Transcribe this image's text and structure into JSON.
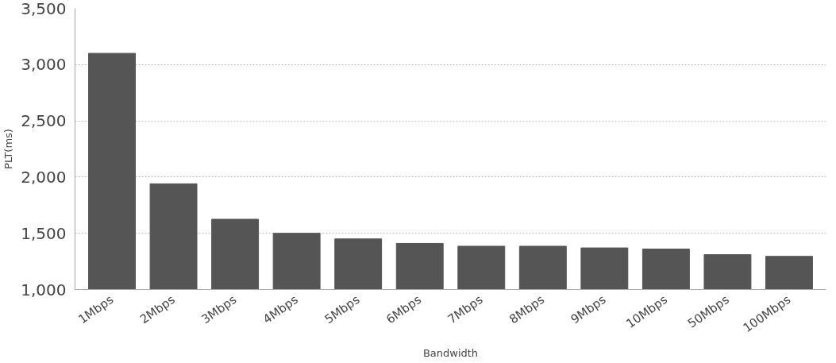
{
  "chart_data": {
    "type": "bar",
    "xlabel": "Bandwidth",
    "ylabel": "PLT(ms)",
    "categories": [
      "1Mbps",
      "2Mbps",
      "3Mbps",
      "4Mbps",
      "5Mbps",
      "6Mbps",
      "7Mbps",
      "8Mbps",
      "9Mbps",
      "10Mbps",
      "50Mbps",
      "100Mbps"
    ],
    "values": [
      3100,
      1940,
      1625,
      1500,
      1450,
      1410,
      1385,
      1385,
      1370,
      1360,
      1310,
      1295
    ],
    "color": "#555555",
    "ylim": [
      1000,
      3500
    ],
    "yticks": [
      {
        "value": 1000,
        "label": "1,000"
      },
      {
        "value": 1500,
        "label": "1,500"
      },
      {
        "value": 2000,
        "label": "2,000"
      },
      {
        "value": 2500,
        "label": "2,500"
      },
      {
        "value": 3000,
        "label": "3,000"
      },
      {
        "value": 3500,
        "label": "3,500"
      }
    ],
    "grid": "y"
  }
}
